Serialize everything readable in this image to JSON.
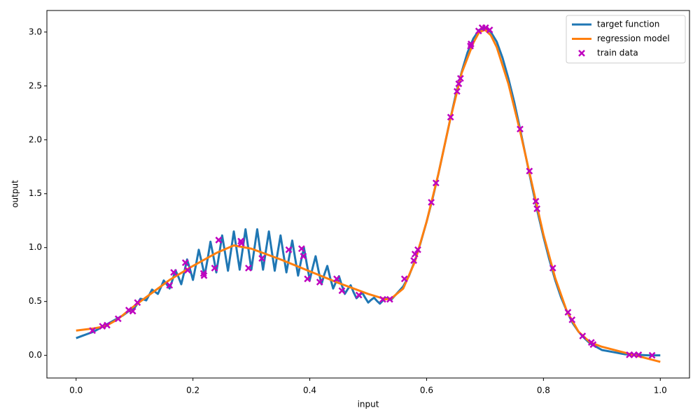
{
  "chart_data": {
    "type": "line",
    "xlabel": "input",
    "ylabel": "output",
    "xlim": [
      -0.05,
      1.05
    ],
    "ylim": [
      -0.21,
      3.2
    ],
    "xticks": [
      {
        "value": 0,
        "label": "0.0"
      },
      0.2,
      0.4,
      0.6,
      0.8,
      {
        "value": 1,
        "label": "1.0"
      }
    ],
    "yticks": [
      {
        "value": 0,
        "label": "0.0"
      },
      0.5,
      {
        "value": 1,
        "label": "1.0"
      },
      1.5,
      {
        "value": 2,
        "label": "2.0"
      },
      2.5,
      {
        "value": 3,
        "label": "3.0"
      }
    ],
    "legend": "upper right",
    "series": [
      {
        "name": "target function",
        "type": "line",
        "color": "#1f77b4",
        "x": [
          0,
          0.01,
          0.02,
          0.03,
          0.04,
          0.05,
          0.06,
          0.07,
          0.08,
          0.09,
          0.1,
          0.105,
          0.11,
          0.115,
          0.12,
          0.125,
          0.13,
          0.135,
          0.14,
          0.145,
          0.15,
          0.155,
          0.16,
          0.165,
          0.17,
          0.175,
          0.18,
          0.185,
          0.19,
          0.195,
          0.2,
          0.205,
          0.21,
          0.215,
          0.22,
          0.225,
          0.23,
          0.235,
          0.24,
          0.245,
          0.25,
          0.255,
          0.26,
          0.265,
          0.27,
          0.275,
          0.28,
          0.285,
          0.29,
          0.295,
          0.3,
          0.305,
          0.31,
          0.315,
          0.32,
          0.325,
          0.33,
          0.335,
          0.34,
          0.345,
          0.35,
          0.355,
          0.36,
          0.365,
          0.37,
          0.375,
          0.38,
          0.385,
          0.39,
          0.395,
          0.4,
          0.405,
          0.41,
          0.415,
          0.42,
          0.425,
          0.43,
          0.435,
          0.44,
          0.445,
          0.45,
          0.455,
          0.46,
          0.465,
          0.47,
          0.475,
          0.48,
          0.485,
          0.49,
          0.495,
          0.5,
          0.505,
          0.51,
          0.515,
          0.52,
          0.525,
          0.53,
          0.535,
          0.54,
          0.545,
          0.55,
          0.56,
          0.57,
          0.58,
          0.59,
          0.6,
          0.61,
          0.62,
          0.63,
          0.64,
          0.65,
          0.66,
          0.67,
          0.68,
          0.69,
          0.7,
          0.71,
          0.72,
          0.73,
          0.74,
          0.75,
          0.76,
          0.77,
          0.78,
          0.79,
          0.8,
          0.81,
          0.82,
          0.83,
          0.84,
          0.85,
          0.86,
          0.87,
          0.88,
          0.89,
          0.9,
          0.92,
          0.94,
          0.96,
          0.98,
          1.0
        ],
        "values": [
          0.16,
          0.18,
          0.2,
          0.22,
          0.25,
          0.28,
          0.31,
          0.34,
          0.37,
          0.41,
          0.44,
          0.48,
          0.525,
          0.52,
          0.51,
          0.56,
          0.61,
          0.59,
          0.57,
          0.63,
          0.695,
          0.66,
          0.62,
          0.7,
          0.79,
          0.73,
          0.66,
          0.77,
          0.89,
          0.8,
          0.7,
          0.835,
          0.98,
          0.865,
          0.74,
          0.89,
          1.055,
          0.92,
          0.77,
          0.94,
          1.113,
          0.95,
          0.785,
          0.965,
          1.15,
          0.975,
          0.795,
          0.98,
          1.17,
          0.985,
          0.795,
          0.984,
          1.17,
          0.98,
          0.795,
          0.975,
          1.15,
          0.965,
          0.785,
          0.953,
          1.113,
          0.938,
          0.77,
          0.92,
          1.065,
          0.9,
          0.74,
          0.875,
          1.0,
          0.845,
          0.7,
          0.815,
          0.92,
          0.785,
          0.66,
          0.753,
          0.83,
          0.718,
          0.62,
          0.683,
          0.735,
          0.648,
          0.57,
          0.615,
          0.65,
          0.585,
          0.53,
          0.558,
          0.58,
          0.533,
          0.49,
          0.515,
          0.535,
          0.505,
          0.48,
          0.508,
          0.53,
          0.52,
          0.52,
          0.55,
          0.58,
          0.64,
          0.74,
          0.88,
          1.05,
          1.24,
          1.45,
          1.68,
          1.93,
          2.18,
          2.42,
          2.63,
          2.81,
          2.94,
          3.02,
          3.04,
          3.0,
          2.91,
          2.76,
          2.57,
          2.35,
          2.1,
          1.84,
          1.58,
          1.33,
          1.1,
          0.89,
          0.7,
          0.54,
          0.41,
          0.3,
          0.22,
          0.16,
          0.11,
          0.08,
          0.05,
          0.03,
          0.01,
          0.005,
          0.0,
          0.0
        ]
      },
      {
        "name": "regression model",
        "type": "line",
        "color": "#ff7f0e",
        "x": [
          0,
          0.03,
          0.05,
          0.07,
          0.1,
          0.13,
          0.16,
          0.2,
          0.24,
          0.27,
          0.3,
          0.35,
          0.4,
          0.45,
          0.5,
          0.53,
          0.54,
          0.56,
          0.58,
          0.6,
          0.62,
          0.64,
          0.66,
          0.68,
          0.69,
          0.7,
          0.71,
          0.72,
          0.74,
          0.76,
          0.78,
          0.8,
          0.82,
          0.84,
          0.86,
          0.88,
          0.9,
          0.95,
          1.0
        ],
        "values": [
          0.23,
          0.25,
          0.27,
          0.33,
          0.46,
          0.58,
          0.7,
          0.83,
          0.95,
          1.02,
          0.99,
          0.89,
          0.78,
          0.67,
          0.57,
          0.52,
          0.53,
          0.62,
          0.87,
          1.24,
          1.68,
          2.18,
          2.62,
          2.9,
          3.0,
          3.02,
          2.97,
          2.86,
          2.52,
          2.08,
          1.6,
          1.12,
          0.72,
          0.41,
          0.22,
          0.12,
          0.08,
          0.01,
          -0.06
        ]
      },
      {
        "name": "train data",
        "type": "scatter",
        "color": "#bf00bf",
        "x": [
          0.028,
          0.045,
          0.053,
          0.072,
          0.09,
          0.097,
          0.105,
          0.16,
          0.167,
          0.187,
          0.191,
          0.218,
          0.219,
          0.237,
          0.244,
          0.282,
          0.283,
          0.295,
          0.318,
          0.364,
          0.386,
          0.389,
          0.396,
          0.417,
          0.446,
          0.455,
          0.484,
          0.525,
          0.537,
          0.562,
          0.578,
          0.58,
          0.585,
          0.608,
          0.616,
          0.641,
          0.652,
          0.655,
          0.658,
          0.675,
          0.676,
          0.689,
          0.695,
          0.701,
          0.708,
          0.76,
          0.776,
          0.787,
          0.789,
          0.816,
          0.842,
          0.849,
          0.867,
          0.882,
          0.885,
          0.947,
          0.955,
          0.963,
          0.986
        ],
        "values": [
          0.23,
          0.27,
          0.28,
          0.34,
          0.42,
          0.41,
          0.49,
          0.65,
          0.77,
          0.86,
          0.79,
          0.76,
          0.74,
          0.81,
          1.07,
          1.06,
          1.04,
          0.81,
          0.9,
          0.98,
          0.99,
          0.92,
          0.71,
          0.68,
          0.71,
          0.6,
          0.56,
          0.52,
          0.52,
          0.71,
          0.88,
          0.94,
          0.98,
          1.42,
          1.6,
          2.21,
          2.45,
          2.52,
          2.57,
          2.87,
          2.89,
          3.01,
          3.04,
          3.04,
          3.02,
          2.1,
          1.71,
          1.43,
          1.36,
          0.81,
          0.4,
          0.33,
          0.18,
          0.12,
          0.1,
          0.005,
          0.005,
          0.005,
          0.0
        ]
      }
    ]
  }
}
